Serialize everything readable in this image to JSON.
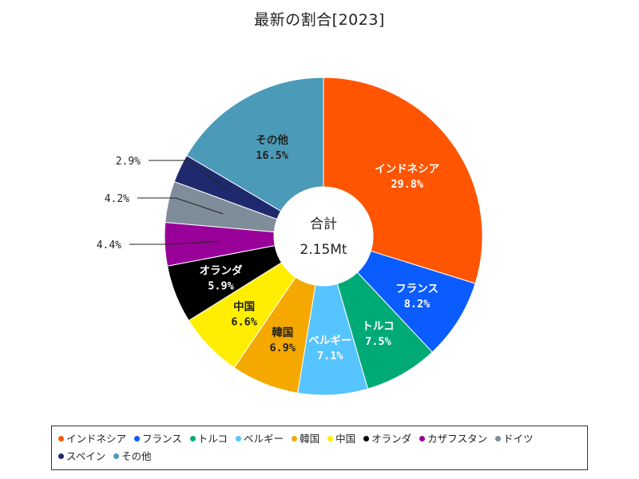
{
  "title": "最新の割合[2023]",
  "chart_data": {
    "type": "pie",
    "donut": true,
    "center_label": "合計",
    "center_value": "2.15Mt",
    "slices": [
      {
        "name": "インドネシア",
        "value": 29.8,
        "label": "29.8%",
        "color": "#ff5500"
      },
      {
        "name": "フランス",
        "value": 8.2,
        "label": "8.2%",
        "color": "#0a5cff"
      },
      {
        "name": "トルコ",
        "value": 7.5,
        "label": "7.5%",
        "color": "#00aa77"
      },
      {
        "name": "ベルギー",
        "value": 7.1,
        "label": "7.1%",
        "color": "#55c4ff"
      },
      {
        "name": "韓国",
        "value": 6.9,
        "label": "6.9%",
        "color": "#f5a800"
      },
      {
        "name": "中国",
        "value": 6.6,
        "label": "6.6%",
        "color": "#ffee00"
      },
      {
        "name": "オランダ",
        "value": 5.9,
        "label": "5.9%",
        "color": "#000000"
      },
      {
        "name": "カザフスタン",
        "value": 4.4,
        "label": "4.4%",
        "color": "#990099"
      },
      {
        "name": "ドイツ",
        "value": 4.2,
        "label": "4.2%",
        "color": "#7f8c99"
      },
      {
        "name": "スペイン",
        "value": 2.9,
        "label": "2.9%",
        "color": "#1f2a6e"
      },
      {
        "name": "その他",
        "value": 16.5,
        "label": "16.5%",
        "color": "#4a9ab8"
      }
    ],
    "legend_position": "bottom"
  }
}
